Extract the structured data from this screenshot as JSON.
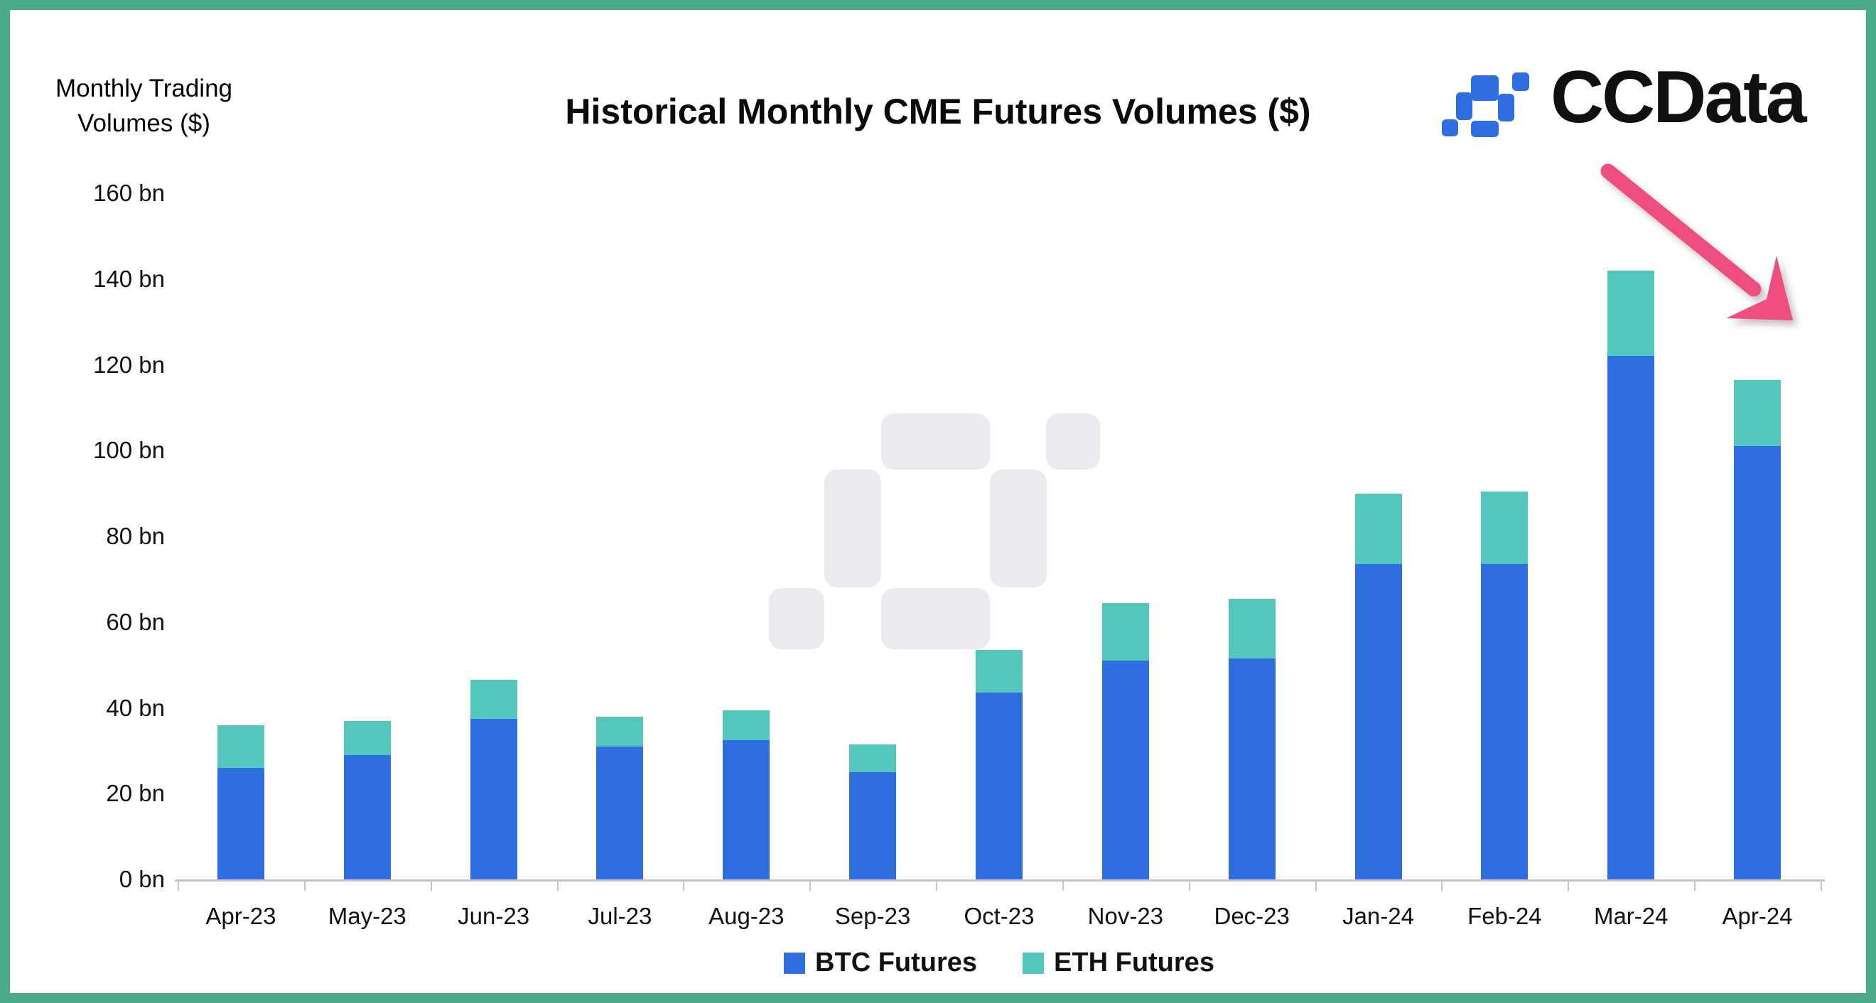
{
  "header": {
    "y_axis_title_line1": "Monthly Trading",
    "y_axis_title_line2": "Volumes ($)",
    "title": "Historical Monthly CME Futures Volumes ($)",
    "logo_text": "CCData"
  },
  "chart_data": {
    "type": "bar",
    "stacked": true,
    "title": "Historical Monthly CME Futures Volumes ($)",
    "ylabel": "Monthly Trading Volumes ($)",
    "xlabel": "",
    "unit": "bn USD",
    "categories": [
      "Apr-23",
      "May-23",
      "Jun-23",
      "Jul-23",
      "Aug-23",
      "Sep-23",
      "Oct-23",
      "Nov-23",
      "Dec-23",
      "Jan-24",
      "Feb-24",
      "Mar-24",
      "Apr-24"
    ],
    "series": [
      {
        "name": "BTC Futures",
        "color": "#2E6EE1",
        "values": [
          26,
          29,
          37.5,
          31,
          32.5,
          25,
          43.5,
          51,
          51.5,
          73.5,
          73.5,
          122,
          101
        ]
      },
      {
        "name": "ETH Futures",
        "color": "#53C7BB",
        "values": [
          10,
          8,
          9,
          7,
          7,
          6.5,
          10,
          13.5,
          14,
          16.5,
          17,
          20,
          15.5
        ]
      }
    ],
    "totals": [
      36,
      37,
      46.5,
      38,
      39.5,
      31.5,
      53.5,
      64.5,
      65.5,
      90,
      90.5,
      142,
      116.5
    ],
    "ylim": [
      0,
      160
    ],
    "y_ticks": [
      "0 bn",
      "20 bn",
      "40 bn",
      "60 bn",
      "80 bn",
      "100 bn",
      "120 bn",
      "140 bn",
      "160 bn"
    ],
    "grid": false,
    "legend_position": "bottom",
    "annotation": {
      "shape": "arrow-down-right",
      "color": "#EE4D80"
    }
  },
  "legend": {
    "items": [
      {
        "label": "BTC Futures",
        "color": "#2E6EE1"
      },
      {
        "label": "ETH Futures",
        "color": "#53C7BB"
      }
    ]
  },
  "colors": {
    "frame_green": "#4BA98C",
    "btc_blue": "#2E6EE1",
    "eth_teal": "#53C7BB",
    "arrow_pink": "#EE4D80",
    "logo_blue": "#2E6EE1",
    "watermark_gray": "#E9EBEE",
    "axis_gray": "#C6C6C6"
  }
}
